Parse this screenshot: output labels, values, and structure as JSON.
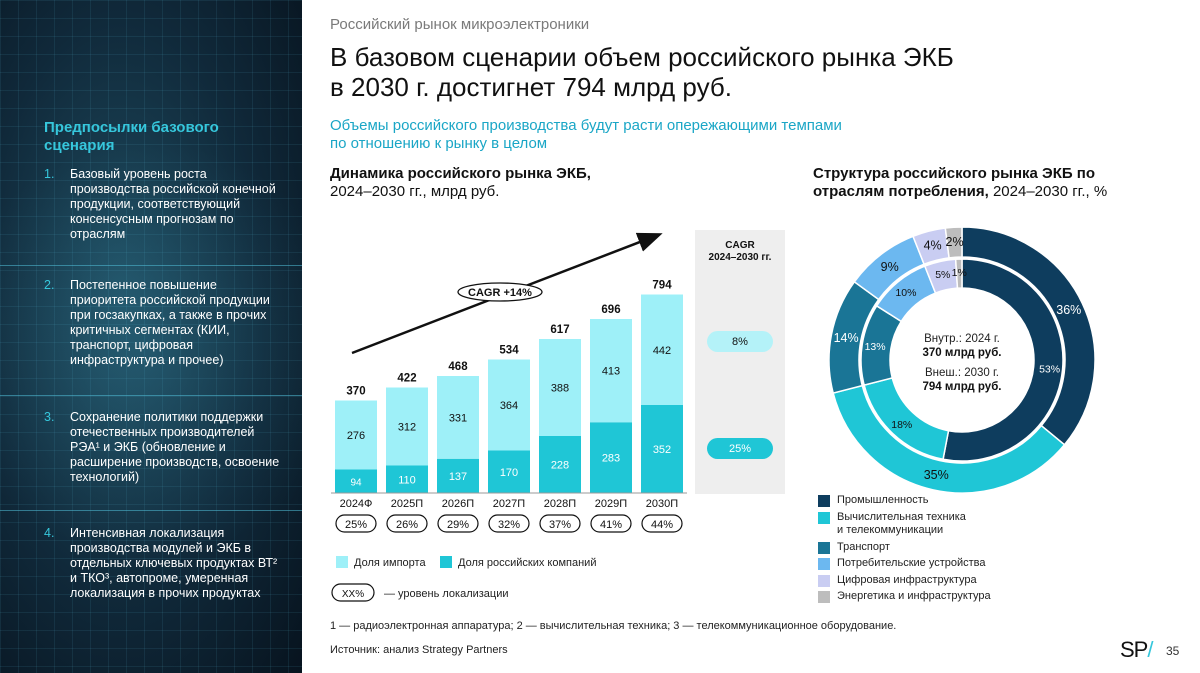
{
  "left_panel": {
    "title": "Предпосылки базового сценария",
    "items": [
      {
        "num": "1.",
        "text": "Базовый уровень роста производства российской конечной продукции, соответствующий консенсусным прогнозам по отраслям"
      },
      {
        "num": "2.",
        "text": "Постепенное повышение приоритета российской продукции при госзакупках, а также в прочих критичных сегментах (КИИ, транспорт, цифровая инфраструктура и прочее)"
      },
      {
        "num": "3.",
        "text": "Сохранение политики поддержки отечественных производителей РЭА¹ и ЭКБ (обновление и расширение производств, освоение технологий)"
      },
      {
        "num": "4.",
        "text": "Интенсивная локализация производства модулей и ЭКБ в отдельных ключевых продуктах ВТ² и ТКО³, автопроме, умеренная локализация в прочих продуктах"
      }
    ]
  },
  "header": {
    "overline": "Российский рынок микроэлектроники",
    "headline_line1": "В базовом сценарии объем российского рынка ЭКБ",
    "headline_line2": "в 2030 г. достигнет 794 млрд руб.",
    "subhead_line1": "Объемы российского производства будут расти опережающими темпами",
    "subhead_line2": "по отношению к рынку в целом"
  },
  "bar_section": {
    "title_bold": "Динамика российского рынка ЭКБ,",
    "title_rest": "2024–2030 гг., млрд руб.",
    "cagr_arrow_label": "CAGR +14%",
    "cagr_panel_title_line1": "CAGR",
    "cagr_panel_title_line2": "2024–2030 гг.",
    "cagr_import": "8%",
    "cagr_domestic": "25%",
    "legend_import": "Доля импорта",
    "legend_domestic": "Доля российских компаний",
    "legend_loc_sample": "XX%",
    "legend_loc_text": "— уровень локализации"
  },
  "donut_section": {
    "title_line1": "Структура российского рынка ЭКБ по",
    "title_line2_bold": "отраслям потребления,",
    "title_line2_rest": " 2024–2030 гг., %",
    "inner_label_line1": "Внутр.: 2024 г.",
    "inner_value_line1": "370 млрд руб.",
    "inner_label_line2": "Внеш.: 2030 г.",
    "inner_value_line2": "794 млрд руб."
  },
  "colors": {
    "import": "#9ef0f8",
    "domestic": "#1fc6d6",
    "industry": "#0e3d5e",
    "computing": "#1fc6d6",
    "transport": "#1a7596",
    "consumer": "#6cb8f0",
    "digital": "#c9cdf2",
    "energy": "#bdbdbd",
    "cagr_pill": "#b4f2f8",
    "cagr_pill2": "#1fc6d6"
  },
  "chart_data": [
    {
      "type": "bar",
      "title": "Динамика российского рынка ЭКБ, 2024–2030 гг., млрд руб.",
      "categories": [
        "2024Ф",
        "2025П",
        "2026П",
        "2027П",
        "2028П",
        "2029П",
        "2030П"
      ],
      "series": [
        {
          "name": "Доля российских компаний",
          "values": [
            94,
            110,
            137,
            170,
            228,
            283,
            352
          ]
        },
        {
          "name": "Доля импорта",
          "values": [
            276,
            312,
            331,
            364,
            388,
            413,
            442
          ]
        }
      ],
      "totals": [
        370,
        422,
        468,
        534,
        617,
        696,
        794
      ],
      "localization": [
        "25%",
        "26%",
        "29%",
        "32%",
        "37%",
        "41%",
        "44%"
      ],
      "ylim": [
        0,
        800
      ]
    },
    {
      "type": "pie",
      "title": "Структура российского рынка ЭКБ по отраслям потребления, 2024–2030 гг., %",
      "categories": [
        "Промышленность",
        "Вычислительная техника и телекоммуникации",
        "Транспорт",
        "Потребительские устройства",
        "Цифровая инфраструктура",
        "Энергетика и инфраструктура"
      ],
      "legend_lines": [
        [
          "Промышленность"
        ],
        [
          "Вычислительная техника",
          "и телекоммуникации"
        ],
        [
          "Транспорт"
        ],
        [
          "Потребительские устройства"
        ],
        [
          "Цифровая инфраструктура"
        ],
        [
          "Энергетика и инфраструктура"
        ]
      ],
      "inner_2024": [
        53,
        18,
        13,
        10,
        5,
        1
      ],
      "outer_2030": [
        36,
        35,
        14,
        9,
        4,
        2
      ],
      "inner_labels": [
        "53%",
        "18%",
        "13%",
        "10%",
        "5%",
        "1%"
      ],
      "outer_labels": [
        "36%",
        "35%",
        "14%",
        "9%",
        "4%",
        "2%"
      ]
    }
  ],
  "footer": {
    "footnote": "1 — радиоэлектронная аппаратура; 2 — вычислительная техника; 3 — телекоммуникационное оборудование.",
    "source": "Источник: анализ Strategy Partners",
    "logo_text": "SP",
    "logo_slash": "/",
    "page_number": "35"
  }
}
